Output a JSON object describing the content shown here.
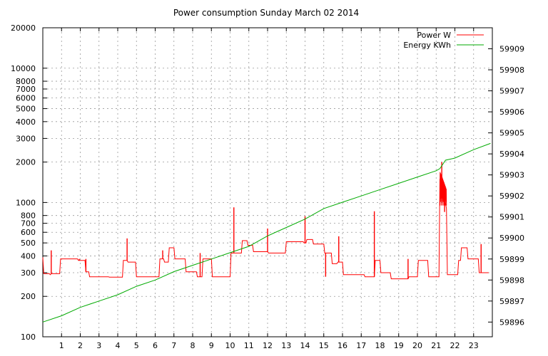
{
  "chart_data": {
    "type": "line",
    "title": "Power consumption Sunday March 02 2014",
    "xlabel": "",
    "ylabel": "",
    "y2label": "",
    "x_ticks": [
      1,
      2,
      3,
      4,
      5,
      6,
      7,
      8,
      9,
      10,
      11,
      12,
      13,
      14,
      15,
      16,
      17,
      18,
      19,
      20,
      21,
      22,
      23
    ],
    "xlim": [
      0,
      24
    ],
    "y_scale": "log",
    "ylim": [
      100,
      20000
    ],
    "y_ticks": [
      100,
      200,
      300,
      400,
      500,
      600,
      700,
      800,
      1000,
      2000,
      3000,
      4000,
      5000,
      6000,
      7000,
      8000,
      10000,
      20000
    ],
    "y2lim": [
      59895.3,
      59910.0
    ],
    "y2_ticks": [
      59896,
      59897,
      59898,
      59899,
      59900,
      59901,
      59902,
      59903,
      59904,
      59905,
      59906,
      59907,
      59908,
      59909
    ],
    "grid": true,
    "legend": "top-right",
    "series": [
      {
        "name": "Power W",
        "color": "#ff0000",
        "axis": "left",
        "x": [
          0.0,
          0.05,
          0.1,
          0.35,
          0.4,
          0.45,
          0.9,
          0.95,
          1.85,
          1.9,
          2.25,
          2.3,
          2.45,
          2.5,
          3.5,
          3.55,
          4.25,
          4.3,
          4.5,
          4.55,
          4.95,
          5.0,
          6.2,
          6.25,
          6.45,
          6.5,
          6.7,
          6.75,
          7.0,
          7.05,
          7.6,
          7.65,
          7.9,
          7.95,
          8.2,
          8.25,
          8.5,
          8.55,
          9.0,
          9.05,
          10.0,
          10.05,
          10.6,
          10.65,
          10.9,
          10.95,
          11.2,
          11.25,
          12.0,
          12.05,
          12.95,
          13.0,
          13.9,
          13.95,
          14.05,
          14.1,
          14.4,
          14.45,
          15.0,
          15.05,
          15.4,
          15.45,
          15.7,
          15.75,
          16.0,
          16.05,
          17.15,
          17.2,
          17.7,
          17.75,
          18.0,
          18.05,
          18.55,
          18.6,
          19.5,
          19.55,
          20.0,
          20.05,
          20.55,
          20.6,
          21.15,
          21.2,
          21.3,
          21.4,
          21.55,
          21.6,
          22.15,
          22.2,
          22.3,
          22.35,
          22.65,
          22.7,
          23.25,
          23.3,
          23.8
        ],
        "y": [
          390,
          295,
          295,
          295,
          290,
          295,
          295,
          380,
          380,
          370,
          370,
          305,
          305,
          280,
          280,
          278,
          278,
          370,
          370,
          360,
          360,
          280,
          280,
          380,
          380,
          360,
          360,
          460,
          460,
          380,
          380,
          305,
          305,
          305,
          305,
          280,
          280,
          380,
          380,
          280,
          280,
          420,
          420,
          520,
          520,
          480,
          480,
          430,
          430,
          420,
          420,
          510,
          510,
          500,
          500,
          530,
          530,
          490,
          490,
          420,
          420,
          350,
          350,
          360,
          360,
          290,
          290,
          280,
          280,
          370,
          370,
          300,
          300,
          270,
          270,
          280,
          280,
          370,
          370,
          280,
          280,
          1500,
          1300,
          1200,
          900,
          290,
          290,
          370,
          370,
          460,
          460,
          380,
          380,
          300,
          300
        ]
      },
      {
        "name": "Energy KWh",
        "color": "#00aa00",
        "axis": "right",
        "x": [
          0.0,
          1.0,
          2.0,
          3.0,
          4.0,
          5.0,
          6.0,
          7.0,
          8.0,
          9.0,
          10.0,
          11.0,
          12.0,
          13.0,
          14.0,
          15.0,
          16.0,
          17.0,
          18.0,
          19.0,
          20.0,
          21.0,
          21.2,
          21.5,
          22.0,
          23.0,
          23.9
        ],
        "y": [
          59896.0,
          59896.3,
          59896.7,
          59897.0,
          59897.3,
          59897.7,
          59898.0,
          59898.4,
          59898.7,
          59899.0,
          59899.3,
          59899.6,
          59900.1,
          59900.5,
          59900.9,
          59901.4,
          59901.7,
          59902.0,
          59902.3,
          59902.6,
          59902.9,
          59903.2,
          59903.3,
          59903.7,
          59903.8,
          59904.2,
          59904.5
        ]
      }
    ],
    "spikes": [
      {
        "x": 0.45,
        "y": 440
      },
      {
        "x": 1.95,
        "y": 380
      },
      {
        "x": 2.3,
        "y": 380
      },
      {
        "x": 4.5,
        "y": 540
      },
      {
        "x": 6.4,
        "y": 440
      },
      {
        "x": 8.4,
        "y": 420
      },
      {
        "x": 10.2,
        "y": 920
      },
      {
        "x": 12.0,
        "y": 640
      },
      {
        "x": 14.0,
        "y": 790
      },
      {
        "x": 15.1,
        "y": 280
      },
      {
        "x": 15.8,
        "y": 560
      },
      {
        "x": 17.7,
        "y": 860
      },
      {
        "x": 19.5,
        "y": 380
      },
      {
        "x": 21.3,
        "y": 2000
      },
      {
        "x": 21.45,
        "y": 850
      },
      {
        "x": 23.4,
        "y": 490
      }
    ]
  }
}
